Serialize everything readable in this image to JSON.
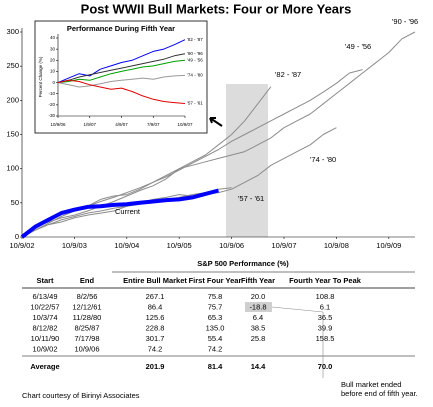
{
  "chart_data": [
    {
      "type": "line",
      "title": "Post WWII Bull Markets: Four or More Years",
      "categories": [
        "10/9/02",
        null,
        null,
        null,
        "10/9/03",
        null,
        null,
        null,
        "10/9/04",
        null,
        null,
        null,
        "10/9/05",
        null,
        null,
        null,
        "10/9/06",
        null,
        null,
        null,
        "10/9/07",
        null,
        null,
        null,
        "10/9/08",
        null,
        null,
        null,
        "10/9/09",
        null,
        null
      ],
      "ylim": [
        0,
        300
      ],
      "yticks": [
        0,
        50,
        100,
        150,
        200,
        250,
        300
      ],
      "grid": false,
      "series": [
        {
          "name": "'90 - '96",
          "color": "#8c8c8c",
          "values": [
            0,
            15,
            22,
            28,
            32,
            38,
            45,
            52,
            60,
            68,
            75,
            85,
            100,
            105,
            110,
            115,
            120,
            125,
            135,
            145,
            160,
            170,
            180,
            195,
            210,
            225,
            240,
            255,
            270,
            290,
            300
          ]
        },
        {
          "name": "'49 - '56",
          "color": "#8c8c8c",
          "values": [
            0,
            10,
            20,
            30,
            38,
            45,
            52,
            58,
            65,
            72,
            80,
            88,
            98,
            108,
            118,
            128,
            140,
            150,
            160,
            170,
            180,
            190,
            200,
            212,
            225,
            240,
            245,
            null,
            null,
            null,
            null
          ]
        },
        {
          "name": "'82 - '87",
          "color": "#8c8c8c",
          "values": [
            0,
            15,
            25,
            35,
            40,
            45,
            55,
            60,
            62,
            70,
            80,
            90,
            100,
            110,
            120,
            135,
            150,
            170,
            195,
            220,
            null,
            null,
            null,
            null,
            null,
            null,
            null,
            null,
            null,
            null,
            null
          ]
        },
        {
          "name": "'74 - '80",
          "color": "#8c8c8c",
          "values": [
            0,
            10,
            18,
            22,
            28,
            32,
            35,
            38,
            45,
            50,
            55,
            58,
            62,
            60,
            62,
            65,
            70,
            80,
            90,
            105,
            115,
            125,
            135,
            150,
            160,
            null,
            null,
            null,
            null,
            null,
            null
          ]
        },
        {
          "name": "'57 - '61",
          "color": "#8c8c8c",
          "values": [
            0,
            10,
            18,
            25,
            30,
            35,
            38,
            42,
            45,
            48,
            50,
            55,
            58,
            62,
            65,
            70,
            72,
            null,
            null,
            null,
            null,
            null,
            null,
            null,
            null,
            null,
            null,
            null,
            null,
            null,
            null
          ]
        },
        {
          "name": "Current",
          "color": "#0000ff",
          "values": [
            0,
            15,
            25,
            35,
            40,
            44,
            45,
            47,
            48,
            50,
            52,
            54,
            55,
            58,
            63,
            68,
            null,
            null,
            null,
            null,
            null,
            null,
            null,
            null,
            null,
            null,
            null,
            null,
            null,
            null,
            null
          ]
        }
      ]
    },
    {
      "type": "line",
      "title": "Performance During Fifth Year",
      "y_label": "Percent Change (%)",
      "categories": [
        "10/9/06",
        null,
        null,
        "1/9/07",
        null,
        null,
        "4/9/07",
        null,
        null,
        "7/9/07",
        null,
        null,
        "10/9/07"
      ],
      "ylim": [
        -30,
        40
      ],
      "yticks": [
        -30,
        -20,
        -10,
        0,
        10,
        20,
        30,
        40
      ],
      "grid": false,
      "series": [
        {
          "name": "'82 - '87",
          "color": "#0000ff",
          "values": [
            0,
            4,
            8,
            6,
            12,
            15,
            18,
            20,
            24,
            28,
            30,
            34,
            38.5
          ]
        },
        {
          "name": "'90 - '96",
          "color": "#333333",
          "values": [
            0,
            2,
            5,
            7,
            9,
            11,
            13,
            15,
            17,
            19,
            21,
            24,
            25.8
          ]
        },
        {
          "name": "'49 - '56",
          "color": "#00a000",
          "values": [
            0,
            1,
            3,
            2,
            5,
            8,
            10,
            12,
            14,
            15,
            17,
            19,
            20
          ]
        },
        {
          "name": "'74 - '80",
          "color": "#999999",
          "values": [
            0,
            -2,
            -4,
            -3,
            -1,
            1,
            2,
            3,
            4,
            3,
            5,
            6,
            6.4
          ]
        },
        {
          "name": "'57 - '61",
          "color": "#e00000",
          "values": [
            0,
            2,
            1,
            -2,
            -4,
            -6,
            -5,
            -8,
            -12,
            -15,
            -17,
            -18,
            -18.8
          ]
        }
      ]
    }
  ],
  "table": {
    "title": "S&P 500 Performance (%)",
    "columns": [
      "Start",
      "End",
      "Entire Bull Market",
      "First Four Year",
      "Fifth Year",
      "Fourth Year To Peak"
    ],
    "rows": [
      [
        "6/13/49",
        "8/2/56",
        "267.1",
        "75.8",
        "20.0",
        "108.8"
      ],
      [
        "10/22/57",
        "12/12/61",
        "86.4",
        "75.7",
        "-18.8",
        "6.1"
      ],
      [
        "10/3/74",
        "11/28/80",
        "125.6",
        "65.3",
        "6.4",
        "36.5"
      ],
      [
        "8/12/82",
        "8/25/87",
        "228.8",
        "135.0",
        "38.5",
        "39.9"
      ],
      [
        "10/11/90",
        "7/17/98",
        "301.7",
        "55.4",
        "25.8",
        "158.5"
      ],
      [
        "10/9/02",
        "10/9/06",
        "74.2",
        "74.2",
        null,
        null
      ]
    ],
    "average": {
      "label": "Average",
      "values": [
        "201.9",
        "81.4",
        "14.4",
        "70.0"
      ]
    }
  },
  "note": [
    "Bull market ended",
    "before end of fifth year."
  ],
  "credit": "Chart courtesy of Birinyi Associates"
}
